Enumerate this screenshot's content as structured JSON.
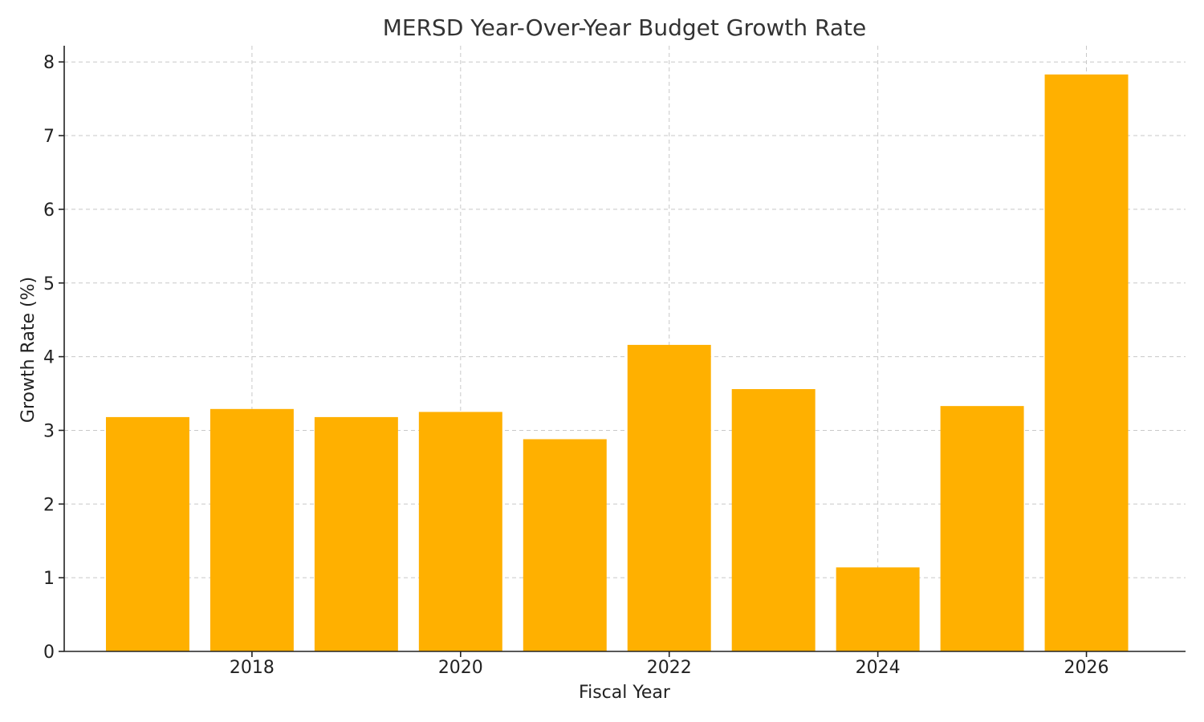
{
  "chart_data": {
    "type": "bar",
    "title": "MERSD Year-Over-Year Budget Growth Rate",
    "xlabel": "Fiscal Year",
    "ylabel": "Growth Rate (%)",
    "categories": [
      2017,
      2018,
      2019,
      2020,
      2021,
      2022,
      2023,
      2024,
      2025,
      2026
    ],
    "values": [
      3.18,
      3.29,
      3.18,
      3.25,
      2.88,
      4.16,
      3.56,
      1.14,
      3.33,
      7.83
    ],
    "x_ticks": [
      2018,
      2020,
      2022,
      2024,
      2026
    ],
    "y_ticks": [
      0,
      1,
      2,
      3,
      4,
      5,
      6,
      7,
      8
    ],
    "xlim": [
      2016.2,
      2026.95
    ],
    "ylim": [
      0,
      8.22
    ],
    "bar_color": "#ffb000",
    "grid": true,
    "legend": "none"
  }
}
